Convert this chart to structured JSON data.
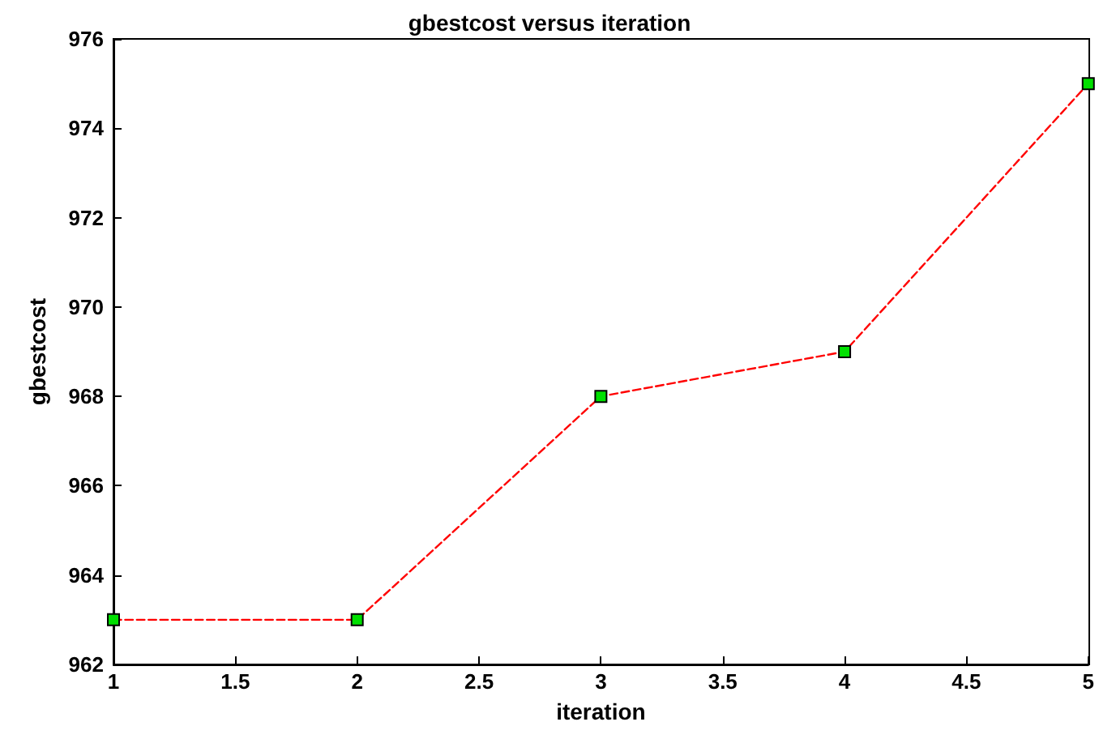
{
  "chart_data": {
    "type": "line",
    "title": "gbestcost versus iteration",
    "xlabel": "iteration",
    "ylabel": "gbestcost",
    "x": [
      1,
      2,
      3,
      4,
      5
    ],
    "series": [
      {
        "color": "#ff0000",
        "values": [
          963,
          963,
          968,
          969,
          975
        ]
      }
    ],
    "xlim": [
      1,
      5
    ],
    "xticks": [
      1,
      1.5,
      2,
      2.5,
      3,
      3.5,
      4,
      4.5,
      5
    ],
    "ylim": [
      962,
      976
    ],
    "yticks": [
      962,
      964,
      966,
      968,
      970,
      972,
      974,
      976
    ],
    "grid": false,
    "marker": "square",
    "line_style": "dashed"
  }
}
